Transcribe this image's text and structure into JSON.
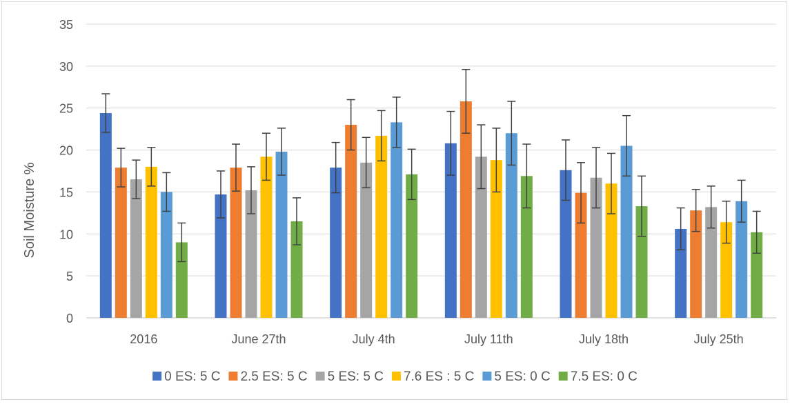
{
  "chart_data": {
    "type": "bar",
    "title": "",
    "xlabel": "",
    "ylabel": "Soil Moisture %",
    "ylim": [
      0,
      35
    ],
    "yticks": [
      0,
      5,
      10,
      15,
      20,
      25,
      30,
      35
    ],
    "grid": "horizontal",
    "legend_position": "bottom",
    "error_bars": true,
    "categories": [
      "2016",
      "June 27th",
      "July  4th",
      "July 11th",
      "July 18th",
      "July 25th"
    ],
    "series": [
      {
        "name": "0 ES: 5 C",
        "color": "#4472c4",
        "values": [
          24.4,
          14.7,
          17.9,
          20.8,
          17.6,
          10.6
        ],
        "errors": [
          2.3,
          2.8,
          3.0,
          3.8,
          3.6,
          2.5
        ]
      },
      {
        "name": "2.5 ES: 5 C",
        "color": "#ed7d31",
        "values": [
          17.9,
          17.9,
          23.0,
          25.8,
          14.9,
          12.8
        ],
        "errors": [
          2.3,
          2.8,
          3.0,
          3.8,
          3.6,
          2.5
        ]
      },
      {
        "name": "5 ES: 5 C",
        "color": "#a5a5a5",
        "values": [
          16.5,
          15.2,
          18.5,
          19.2,
          16.7,
          13.2
        ],
        "errors": [
          2.3,
          2.8,
          3.0,
          3.8,
          3.6,
          2.5
        ]
      },
      {
        "name": "7.6 ES : 5 C",
        "color": "#ffc000",
        "values": [
          18.0,
          19.2,
          21.7,
          18.8,
          16.0,
          11.4
        ],
        "errors": [
          2.3,
          2.8,
          3.0,
          3.8,
          3.6,
          2.5
        ]
      },
      {
        "name": "5 ES: 0 C",
        "color": "#5b9bd5",
        "values": [
          15.0,
          19.8,
          23.3,
          22.0,
          20.5,
          13.9
        ],
        "errors": [
          2.3,
          2.8,
          3.0,
          3.8,
          3.6,
          2.5
        ]
      },
      {
        "name": "7.5 ES: 0 C",
        "color": "#70ad47",
        "values": [
          9.0,
          11.5,
          17.1,
          16.9,
          13.3,
          10.2
        ],
        "errors": [
          2.3,
          2.8,
          3.0,
          3.8,
          3.6,
          2.5
        ]
      }
    ]
  }
}
